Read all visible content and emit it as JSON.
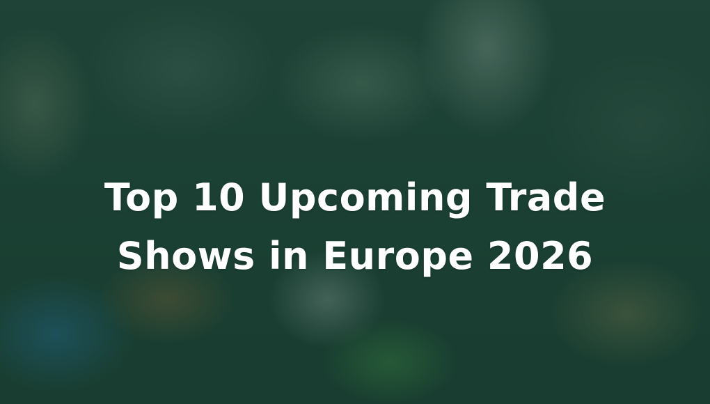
{
  "hero": {
    "title_line1": "Top 10 Upcoming Trade",
    "title_line2": "Shows in Europe 2026",
    "overlay_color": "#1d4a3a",
    "text_color": "#ffffff",
    "background": "trade-show-crowd-photo"
  }
}
